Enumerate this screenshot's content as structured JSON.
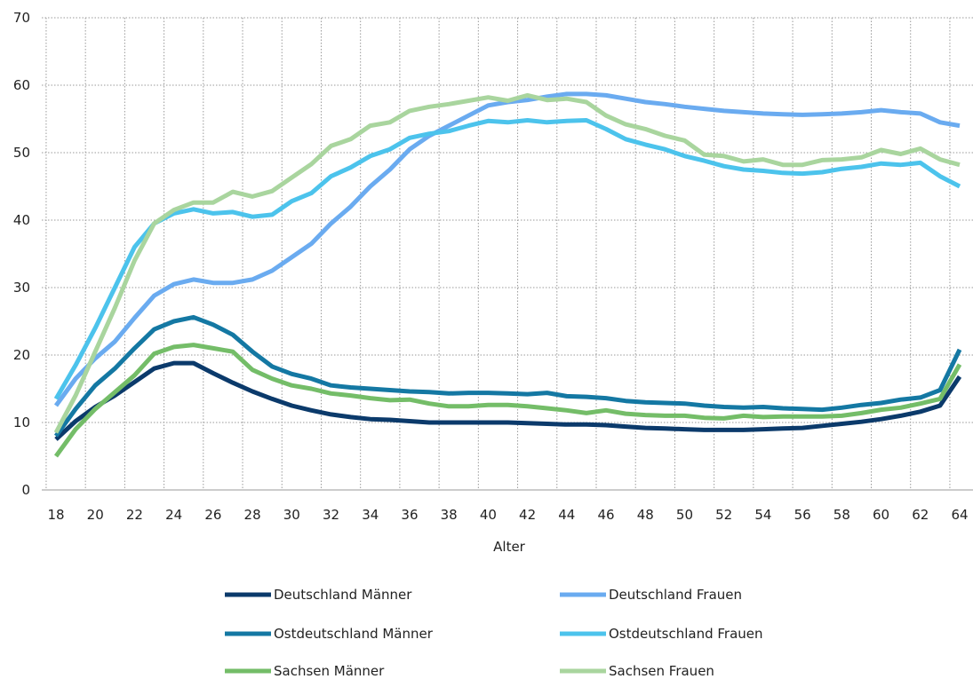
{
  "chart_data": {
    "type": "line",
    "xlabel": "Alter",
    "ylabel": "",
    "title": "",
    "xlim": [
      18,
      64
    ],
    "ylim": [
      0,
      70
    ],
    "yticks": [
      0,
      10,
      20,
      30,
      40,
      50,
      60,
      70
    ],
    "xticks": [
      18,
      20,
      22,
      24,
      26,
      28,
      30,
      32,
      34,
      36,
      38,
      40,
      42,
      44,
      46,
      48,
      50,
      52,
      54,
      56,
      58,
      60,
      62,
      64
    ],
    "grid": "on",
    "legend_placement": "bottom",
    "x": [
      18,
      19,
      20,
      21,
      22,
      23,
      24,
      25,
      26,
      27,
      28,
      29,
      30,
      31,
      32,
      33,
      34,
      35,
      36,
      37,
      38,
      39,
      40,
      41,
      42,
      43,
      44,
      45,
      46,
      47,
      48,
      49,
      50,
      51,
      52,
      53,
      54,
      55,
      56,
      57,
      58,
      59,
      60,
      61,
      62,
      63,
      64
    ],
    "series": [
      {
        "name": "Deutschland Männer",
        "color": "#0b3a6b",
        "values": [
          7.5,
          10.2,
          12.3,
          14.0,
          16.0,
          18.0,
          18.8,
          18.8,
          17.3,
          15.9,
          14.6,
          13.5,
          12.5,
          11.8,
          11.2,
          10.8,
          10.5,
          10.4,
          10.2,
          10.0,
          10.0,
          10.0,
          10.0,
          10.0,
          9.9,
          9.8,
          9.7,
          9.7,
          9.6,
          9.4,
          9.2,
          9.1,
          9.0,
          8.9,
          8.9,
          8.9,
          9.0,
          9.1,
          9.2,
          9.5,
          9.8,
          10.1,
          10.5,
          11.0,
          11.6,
          12.5,
          16.8
        ]
      },
      {
        "name": "Deutschland Frauen",
        "color": "#6aabf0",
        "values": [
          12.5,
          16.5,
          19.5,
          22.0,
          25.5,
          28.8,
          30.5,
          31.2,
          30.7,
          30.7,
          31.2,
          32.5,
          34.5,
          36.5,
          39.5,
          42.0,
          45.0,
          47.5,
          50.5,
          52.5,
          54.0,
          55.5,
          57.0,
          57.5,
          57.8,
          58.3,
          58.7,
          58.7,
          58.5,
          58.0,
          57.5,
          57.2,
          56.8,
          56.5,
          56.2,
          56.0,
          55.8,
          55.7,
          55.6,
          55.7,
          55.8,
          56.0,
          56.3,
          56.0,
          55.8,
          54.5,
          54.0
        ]
      },
      {
        "name": "Ostdeutschland Männer",
        "color": "#1478a3",
        "values": [
          8.0,
          12.0,
          15.5,
          18.0,
          21.0,
          23.8,
          25.0,
          25.6,
          24.5,
          23.0,
          20.5,
          18.3,
          17.2,
          16.5,
          15.5,
          15.2,
          15.0,
          14.8,
          14.6,
          14.5,
          14.3,
          14.4,
          14.4,
          14.3,
          14.2,
          14.4,
          13.9,
          13.8,
          13.6,
          13.2,
          13.0,
          12.9,
          12.8,
          12.5,
          12.3,
          12.2,
          12.3,
          12.1,
          12.0,
          11.9,
          12.2,
          12.6,
          12.9,
          13.4,
          13.7,
          14.8,
          20.8
        ]
      },
      {
        "name": "Ostdeutschland Frauen",
        "color": "#4cc3ec",
        "values": [
          13.5,
          18.5,
          24.0,
          30.0,
          36.0,
          39.5,
          41.0,
          41.6,
          41.0,
          41.2,
          40.5,
          40.8,
          42.8,
          44.0,
          46.5,
          47.8,
          49.5,
          50.5,
          52.2,
          52.8,
          53.2,
          54.0,
          54.7,
          54.5,
          54.8,
          54.5,
          54.7,
          54.8,
          53.5,
          52.0,
          51.2,
          50.5,
          49.5,
          48.8,
          48.0,
          47.5,
          47.3,
          47.0,
          46.9,
          47.1,
          47.6,
          47.9,
          48.4,
          48.2,
          48.5,
          46.5,
          45.0
        ]
      },
      {
        "name": "Sachsen Männer",
        "color": "#74bd68",
        "values": [
          5.0,
          9.0,
          12.0,
          14.5,
          17.0,
          20.2,
          21.2,
          21.5,
          21.0,
          20.5,
          17.8,
          16.5,
          15.5,
          15.0,
          14.3,
          14.0,
          13.6,
          13.3,
          13.4,
          12.8,
          12.4,
          12.4,
          12.6,
          12.6,
          12.4,
          12.1,
          11.8,
          11.4,
          11.8,
          11.3,
          11.1,
          11.0,
          11.0,
          10.7,
          10.6,
          11.0,
          10.8,
          10.9,
          10.9,
          10.9,
          11.0,
          11.4,
          11.9,
          12.2,
          12.8,
          13.5,
          18.6
        ]
      },
      {
        "name": "Sachsen Frauen",
        "color": "#a9d59e",
        "values": [
          8.5,
          14.0,
          20.5,
          27.0,
          34.0,
          39.5,
          41.5,
          42.6,
          42.6,
          44.2,
          43.5,
          44.3,
          46.3,
          48.3,
          51.0,
          52.0,
          54.0,
          54.5,
          56.2,
          56.8,
          57.2,
          57.7,
          58.2,
          57.7,
          58.5,
          57.8,
          58.0,
          57.5,
          55.5,
          54.2,
          53.5,
          52.5,
          51.8,
          49.7,
          49.5,
          48.7,
          49.0,
          48.2,
          48.2,
          48.9,
          49.0,
          49.3,
          50.4,
          49.8,
          50.6,
          49.0,
          48.2
        ]
      }
    ]
  }
}
